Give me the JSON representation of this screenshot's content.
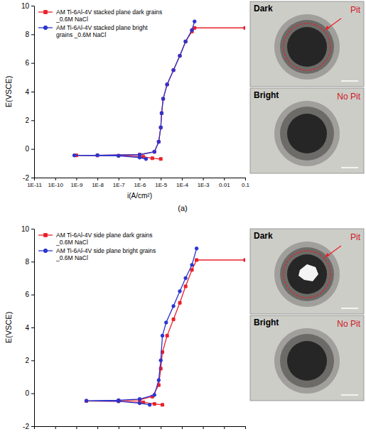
{
  "chart_data": [
    {
      "type": "line",
      "y_label": "E(VSCE)",
      "x_label": "i(A/cm²)",
      "caption": "(a)",
      "log": "x",
      "legend": "upper left",
      "xlim": [
        1e-11,
        0.1
      ],
      "xticks": [
        {
          "value": 1e-11,
          "label": "1E-11"
        },
        {
          "value": 1e-10,
          "label": "1E-10"
        },
        {
          "value": 1e-09,
          "label": "1E-9"
        },
        {
          "value": 1e-08,
          "label": "1E-8"
        },
        {
          "value": 1e-07,
          "label": "1E-7"
        },
        {
          "value": 1e-06,
          "label": "1E-6"
        },
        {
          "value": 1e-05,
          "label": "1E-5"
        },
        {
          "value": 0.0001,
          "label": "1E-4"
        },
        {
          "value": 0.001,
          "label": "1E-3"
        },
        0.01,
        0.1
      ],
      "ylim": [
        -2,
        10
      ],
      "yticks": [
        -2,
        0,
        2,
        4,
        6,
        8,
        10
      ],
      "series": [
        {
          "name": "AM Ti-6Al-4V stacked plane dark grains _0.6M NaCl",
          "color": "#e8202a",
          "marker": "square",
          "x": [
            1e-05,
            4e-06,
            1.5e-06,
            1e-07,
            1e-09,
            1e-08,
            1e-06,
            5e-06,
            8e-06,
            1e-05,
            1.1e-05,
            1.3e-05,
            2e-05,
            4e-05,
            8e-05,
            0.00015,
            0.0003,
            0.0004,
            0.1
          ],
          "values": [
            -0.7,
            -0.65,
            -0.55,
            -0.47,
            -0.45,
            -0.45,
            -0.4,
            -0.2,
            0.5,
            1.5,
            2.5,
            3.5,
            4.5,
            5.5,
            6.5,
            7.5,
            8.2,
            8.45,
            8.45
          ]
        },
        {
          "name": "AM Ti-6Al-4V stacked plane bright grains _0.6M NaCl",
          "color": "#2a35d0",
          "marker": "circle",
          "x": [
            2e-06,
            1e-06,
            1e-07,
            8e-10,
            1e-08,
            1e-06,
            5e-06,
            8e-06,
            1e-05,
            1.1e-05,
            1.3e-05,
            2e-05,
            4e-05,
            8e-05,
            0.00015,
            0.0003,
            0.0004
          ],
          "values": [
            -0.7,
            -0.6,
            -0.48,
            -0.45,
            -0.44,
            -0.4,
            -0.2,
            0.5,
            1.5,
            2.5,
            3.5,
            4.5,
            5.5,
            6.5,
            7.5,
            8.3,
            8.9
          ]
        }
      ]
    },
    {
      "type": "line",
      "y_label": "E(VSCE)",
      "log": "x",
      "legend": "upper left",
      "tick_labels": "y",
      "xlim": [
        1e-11,
        0.1
      ],
      "xticks": [
        1e-11,
        1e-10,
        1e-09,
        1e-08,
        1e-07,
        1e-06,
        1e-05,
        0.0001,
        0.001,
        0.01,
        0.1
      ],
      "ylim": [
        -2,
        10
      ],
      "yticks": [
        -2,
        0,
        2,
        4,
        6,
        8,
        10
      ],
      "series": [
        {
          "name": "AM Ti-6Al-4V side plane dark grains _0.6M NaCl",
          "color": "#e8202a",
          "marker": "square",
          "x": [
            1.2e-05,
            5e-06,
            1.5e-06,
            1e-07,
            3e-09,
            1e-07,
            1e-06,
            4e-06,
            8e-06,
            1e-05,
            1.2e-05,
            2e-05,
            4e-05,
            8e-05,
            0.00015,
            0.0003,
            0.0005,
            0.1
          ],
          "values": [
            -0.7,
            -0.65,
            -0.55,
            -0.48,
            -0.47,
            -0.45,
            -0.4,
            -0.2,
            0.5,
            1.5,
            2.5,
            3.5,
            4.5,
            5.5,
            6.5,
            7.5,
            8.1,
            8.1
          ]
        },
        {
          "name": "AM Ti-6Al-4V side plane bright grains _0.6M NaCl",
          "color": "#2a35d0",
          "marker": "circle",
          "x": [
            3e-06,
            1e-06,
            1e-07,
            3e-09,
            1e-07,
            1e-06,
            5e-06,
            8e-06,
            1e-05,
            1.2e-05,
            1.8e-05,
            4e-05,
            8e-05,
            0.00015,
            0.0003,
            0.0005
          ],
          "values": [
            -0.7,
            -0.6,
            -0.48,
            -0.45,
            -0.42,
            -0.35,
            -0.1,
            0.8,
            2,
            3.5,
            4.3,
            5.3,
            6.2,
            7,
            7.8,
            8.8
          ]
        }
      ]
    }
  ],
  "micrographs": [
    {
      "label": "Dark",
      "annotation": "Pit"
    },
    {
      "label": "Bright",
      "annotation": "No Pit"
    },
    {
      "label": "Dark",
      "annotation": "Pit"
    },
    {
      "label": "Bright",
      "annotation": "No Pit"
    }
  ]
}
